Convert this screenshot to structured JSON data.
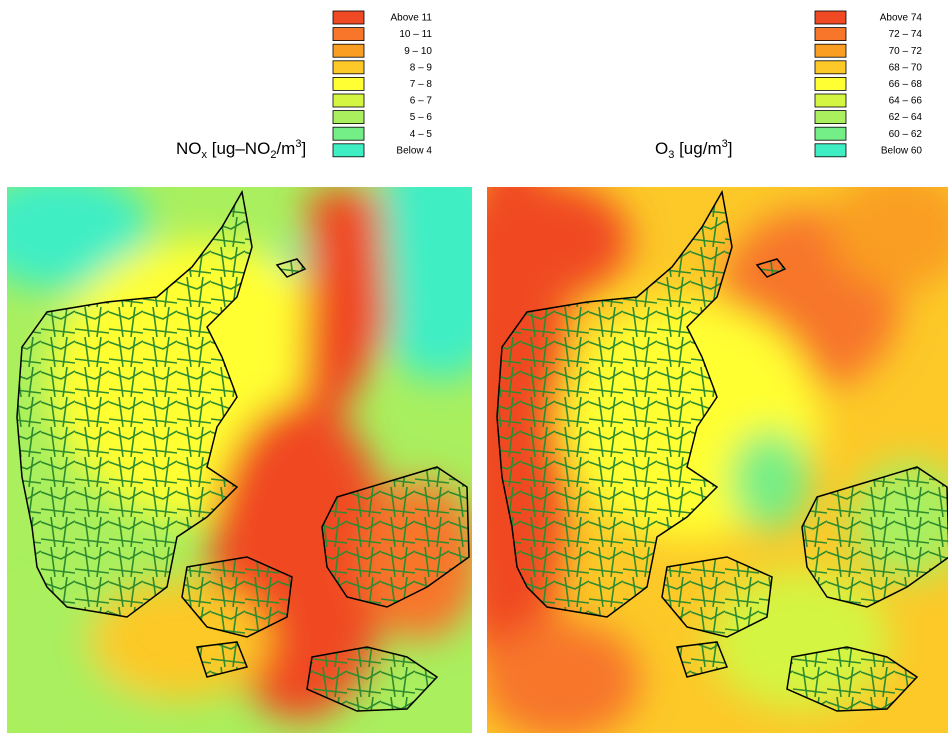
{
  "panels": [
    {
      "title": [
        "NO",
        "x",
        " [ug–NO",
        "2",
        "/m",
        "3",
        "]"
      ],
      "legend": [
        {
          "label": "Above 11",
          "color": "#f04a24"
        },
        {
          "label": "10 – 11",
          "color": "#f7762a"
        },
        {
          "label": "9 – 10",
          "color": "#f99e22"
        },
        {
          "label": "8 – 9",
          "color": "#fcc928"
        },
        {
          "label": "7 – 8",
          "color": "#ffff33"
        },
        {
          "label": "6 – 7",
          "color": "#d4f542"
        },
        {
          "label": "5 – 6",
          "color": "#a9ef5e"
        },
        {
          "label": "4 – 5",
          "color": "#74ee86"
        },
        {
          "label": "Below 4",
          "color": "#40eec4"
        }
      ]
    },
    {
      "title": [
        "O",
        "3",
        " [ug/m",
        "3",
        "]"
      ],
      "legend": [
        {
          "label": "Above 74",
          "color": "#f04a24"
        },
        {
          "label": "72 – 74",
          "color": "#f7762a"
        },
        {
          "label": "70 – 72",
          "color": "#f99e22"
        },
        {
          "label": "68 – 70",
          "color": "#fcc928"
        },
        {
          "label": "66 – 68",
          "color": "#ffff33"
        },
        {
          "label": "64 – 66",
          "color": "#d4f542"
        },
        {
          "label": "62 – 64",
          "color": "#a9ef5e"
        },
        {
          "label": "60 – 62",
          "color": "#74ee86"
        },
        {
          "label": "Below 60",
          "color": "#40eec4"
        }
      ]
    }
  ]
}
